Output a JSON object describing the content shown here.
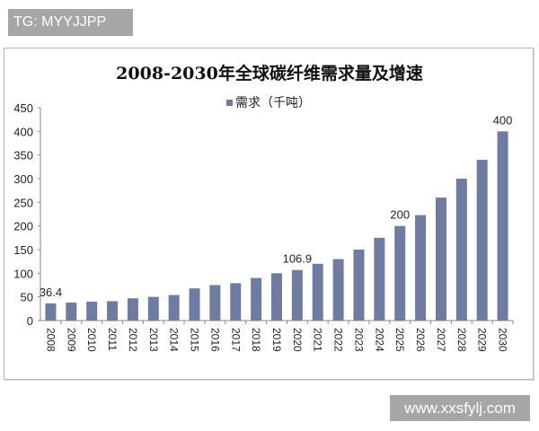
{
  "tag": "TG: MYYJJPP",
  "watermark": "www.xxsfylj.com",
  "chart_data": {
    "type": "bar",
    "title": "2008-2030年全球碳纤维需求量及增速",
    "legend_position": "top",
    "series": [
      {
        "name": "需求（千吨）",
        "color": "#6f7ba0",
        "values": [
          36.4,
          38,
          40,
          41,
          47,
          50,
          54,
          68,
          75,
          79,
          90,
          100,
          106.9,
          120,
          130,
          150,
          175,
          200,
          223,
          260,
          300,
          340,
          400
        ]
      }
    ],
    "categories": [
      "2008",
      "2009",
      "2010",
      "2011",
      "2012",
      "2013",
      "2014",
      "2015",
      "2016",
      "2017",
      "2018",
      "2019",
      "2020",
      "2021",
      "2022",
      "2023",
      "2024",
      "2025",
      "2026",
      "2027",
      "2028",
      "2029",
      "2030"
    ],
    "data_labels": [
      {
        "category": "2008",
        "text": "36.4"
      },
      {
        "category": "2020",
        "text": "106.9"
      },
      {
        "category": "2025",
        "text": "200"
      },
      {
        "category": "2030",
        "text": "400"
      }
    ],
    "yticks": [
      "0",
      "50",
      "100",
      "150",
      "200",
      "250",
      "300",
      "350",
      "400",
      "450"
    ],
    "ylim": [
      0,
      450
    ],
    "grid": false,
    "xlabel": "",
    "ylabel": ""
  }
}
